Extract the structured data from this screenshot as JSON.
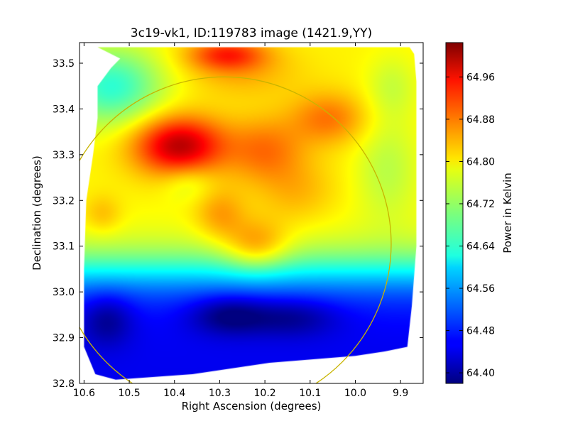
{
  "chart_data": {
    "type": "heatmap",
    "title": "3c19-vk1, ID:119783 image (1421.9,YY)",
    "xlabel": "Right Ascension (degrees)",
    "ylabel": "Declination (degrees)",
    "xlim": [
      10.61,
      9.85
    ],
    "ylim": [
      32.8,
      33.545
    ],
    "xticks": [
      10.6,
      10.5,
      10.4,
      10.3,
      10.2,
      10.1,
      10.0,
      9.9
    ],
    "yticks": [
      32.8,
      32.9,
      33.0,
      33.1,
      33.2,
      33.3,
      33.4,
      33.5
    ],
    "colorbar": {
      "label": "Power in Kelvin",
      "range": [
        64.38,
        65.025
      ],
      "ticks": [
        64.4,
        64.48,
        64.56,
        64.64,
        64.72,
        64.8,
        64.88,
        64.96
      ],
      "colormap": "jet"
    },
    "circle": {
      "center_ra": 10.29,
      "center_dec": 33.105,
      "radius_deg": 0.365,
      "color": "#c8b400"
    },
    "image_footprint": [
      [
        10.57,
        33.535
      ],
      [
        10.485,
        33.535
      ],
      [
        10.435,
        33.535
      ],
      [
        9.88,
        33.535
      ],
      [
        9.87,
        33.52
      ],
      [
        9.865,
        33.46
      ],
      [
        9.865,
        33.1
      ],
      [
        9.875,
        32.97
      ],
      [
        9.885,
        32.88
      ],
      [
        9.935,
        32.87
      ],
      [
        10.0,
        32.86
      ],
      [
        10.19,
        32.845
      ],
      [
        10.36,
        32.82
      ],
      [
        10.53,
        32.808
      ],
      [
        10.575,
        32.82
      ],
      [
        10.6,
        32.88
      ],
      [
        10.6,
        33.05
      ],
      [
        10.595,
        33.2
      ],
      [
        10.58,
        33.3
      ],
      [
        10.57,
        33.38
      ],
      [
        10.57,
        33.45
      ],
      [
        10.54,
        33.49
      ],
      [
        10.52,
        33.51
      ]
    ],
    "field": {
      "base": 64.79,
      "blobs": [
        {
          "ra": 10.39,
          "dec": 33.32,
          "amp": 0.2,
          "sra": 0.07,
          "sdec": 0.045
        },
        {
          "ra": 10.2,
          "dec": 33.31,
          "amp": 0.08,
          "sra": 0.06,
          "sdec": 0.05
        },
        {
          "ra": 10.285,
          "dec": 33.52,
          "amp": 0.12,
          "sra": 0.06,
          "sdec": 0.025
        },
        {
          "ra": 10.06,
          "dec": 33.38,
          "amp": 0.08,
          "sra": 0.06,
          "sdec": 0.04
        },
        {
          "ra": 10.22,
          "dec": 33.1,
          "amp": 0.09,
          "sra": 0.05,
          "sdec": 0.04
        },
        {
          "ra": 10.3,
          "dec": 33.17,
          "amp": 0.06,
          "sra": 0.04,
          "sdec": 0.04
        },
        {
          "ra": 10.56,
          "dec": 33.17,
          "amp": 0.04,
          "sra": 0.03,
          "sdec": 0.03
        },
        {
          "ra": 10.13,
          "dec": 33.22,
          "amp": 0.04,
          "sra": 0.06,
          "sdec": 0.05
        },
        {
          "ra": 10.54,
          "dec": 33.45,
          "amp": -0.14,
          "sra": 0.08,
          "sdec": 0.06
        },
        {
          "ra": 9.93,
          "dec": 33.27,
          "amp": -0.05,
          "sra": 0.05,
          "sdec": 0.08
        },
        {
          "ra": 9.92,
          "dec": 33.45,
          "amp": -0.04,
          "sra": 0.04,
          "sdec": 0.05
        },
        {
          "ra": 10.37,
          "dec": 33.24,
          "amp": -0.04,
          "sra": 0.04,
          "sdec": 0.03
        },
        {
          "ra": 10.28,
          "dec": 32.95,
          "amp": -0.09,
          "sra": 0.06,
          "sdec": 0.03
        },
        {
          "ra": 10.14,
          "dec": 32.945,
          "amp": -0.07,
          "sra": 0.07,
          "sdec": 0.03
        },
        {
          "ra": 10.55,
          "dec": 32.94,
          "amp": -0.07,
          "sra": 0.04,
          "sdec": 0.04
        },
        {
          "ra": 10.25,
          "dec": 33.48,
          "amp": 0.04,
          "sra": 0.09,
          "sdec": 0.04
        }
      ],
      "south_drop": {
        "center_dec": 33.045,
        "width_dec": 0.035,
        "amp": 0.34
      }
    }
  }
}
